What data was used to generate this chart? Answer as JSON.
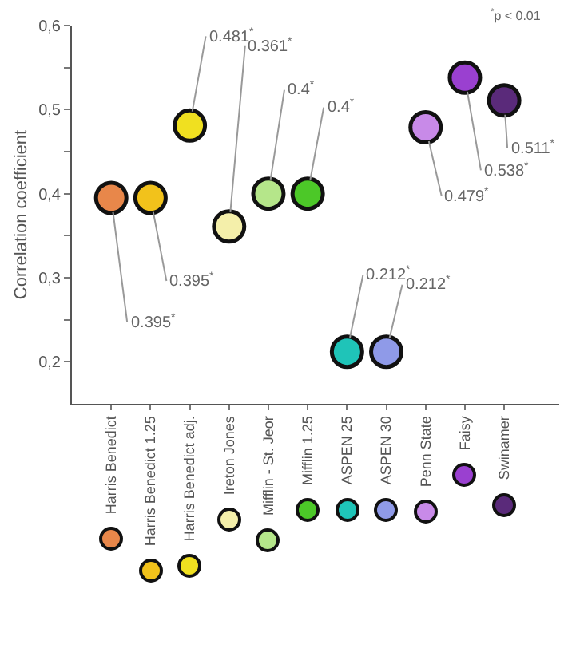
{
  "chart_data": {
    "type": "scatter",
    "ylabel": "Correlation coefficient",
    "categories": [
      "Harris Benedict",
      "Harris Benedict 1.25",
      "Harris Benedict adj.",
      "Ireton Jones",
      "Mifflin - St. Jeor",
      "Mifflin 1.25",
      "ASPEN 25",
      "ASPEN 30",
      "Penn State",
      "Faisy",
      "Swinamer"
    ],
    "values": [
      0.395,
      0.395,
      0.481,
      0.361,
      0.4,
      0.4,
      0.212,
      0.212,
      0.479,
      0.538,
      0.511
    ],
    "value_labels": [
      "0.395$^{*}$",
      "0.395$^{*}$",
      "0.481$^{*}$",
      "0.361$^{*}$",
      "0.4$^{*}$",
      "0.4$^{*}$",
      "0.212$^{*}$",
      "0.212$^{*}$",
      "0.479$^{*}$",
      "0.538$^{*}$",
      "0.511$^{*}$"
    ],
    "colors": [
      "#e8874a",
      "#f2c21b",
      "#f0e020",
      "#f4efaa",
      "#b5e68a",
      "#4cc828",
      "#1fc4b8",
      "#8f9ae8",
      "#c88ae8",
      "#9a40d0",
      "#5a2a7a"
    ],
    "ylim": [
      0.15,
      0.6
    ],
    "yticks": [
      {
        "value": 0.2,
        "label": "0,2"
      },
      {
        "value": 0.25,
        "label": null
      },
      {
        "value": 0.3,
        "label": "0,3"
      },
      {
        "value": 0.35,
        "label": null
      },
      {
        "value": 0.4,
        "label": "0,4"
      },
      {
        "value": 0.45,
        "label": null
      },
      {
        "value": 0.5,
        "label": "0,5"
      },
      {
        "value": 0.55,
        "label": null
      },
      {
        "value": 0.6,
        "label": "0,6"
      }
    ],
    "marker": "circle",
    "grid": false,
    "annotations": [
      "$^{*}$p < 0.01"
    ]
  }
}
